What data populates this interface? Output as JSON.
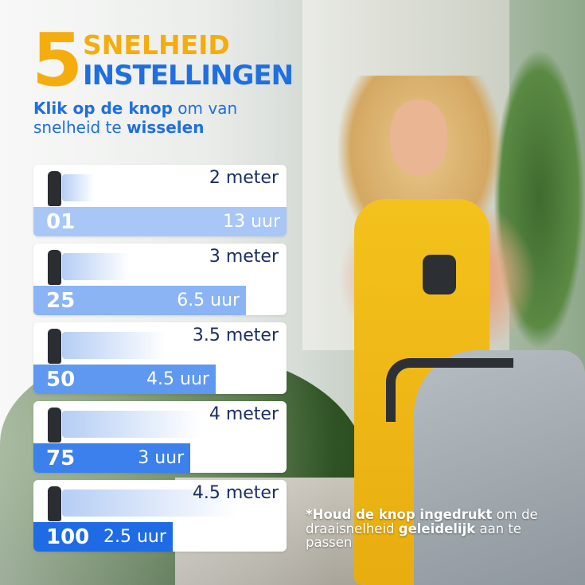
{
  "headline": {
    "number": "5",
    "line1": "SNELHEID",
    "line2": "INSTELLINGEN"
  },
  "subtitle": {
    "bold1": "Klik op de knop",
    "text1": " om van snelheid te ",
    "bold2": "wisselen"
  },
  "colors": {
    "accent_yellow": "#f5ad0d",
    "accent_blue": "#1f6fe0",
    "text_navy": "#1b2f66"
  },
  "speeds": [
    {
      "level": "01",
      "distance": "2 meter",
      "runtime": "13 uur",
      "bar_fraction": 1.0,
      "bar_color": "#a8c7f6"
    },
    {
      "level": "25",
      "distance": "3 meter",
      "runtime": "6.5 uur",
      "bar_fraction": 0.84,
      "bar_color": "#8ab4f4"
    },
    {
      "level": "50",
      "distance": "3.5 meter",
      "runtime": "4.5 uur",
      "bar_fraction": 0.72,
      "bar_color": "#5f98f0"
    },
    {
      "level": "75",
      "distance": "4 meter",
      "runtime": "3 uur",
      "bar_fraction": 0.62,
      "bar_color": "#3b80ec"
    },
    {
      "level": "100",
      "distance": "4.5 meter",
      "runtime": "2.5 uur",
      "bar_fraction": 0.55,
      "bar_color": "#1f6be6"
    }
  ],
  "note": {
    "bold1": "*Houd de knop ingedrukt",
    "text1": " om de draaisnelheid ",
    "bold2": "geleidelijk",
    "text2": " aan te passen"
  }
}
